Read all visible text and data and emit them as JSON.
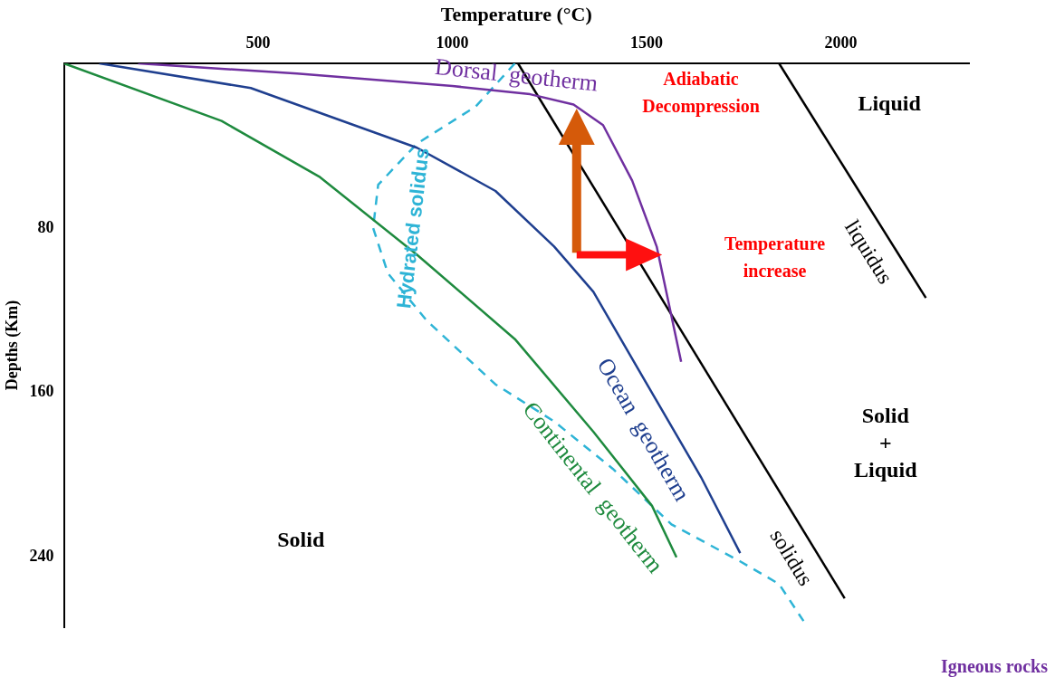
{
  "chart_data": {
    "type": "line",
    "xlabel": "Temperature (°C)",
    "ylabel": "Depths (Km)",
    "xlim": [
      0,
      2330
    ],
    "xticks": [
      500,
      1000,
      1500,
      2000
    ],
    "ylim": [
      274,
      0
    ],
    "yticks": [
      80,
      160,
      240
    ],
    "grid": false,
    "legend": false,
    "marker": "none",
    "series": [
      {
        "name": "Dorsal  geotherm",
        "color": "#7030a0",
        "x": [
          191,
          600,
          1000,
          1200,
          1312,
          1388,
          1463,
          1526,
          1589
        ],
        "values": [
          0,
          5,
          11,
          15,
          20,
          30,
          57,
          89,
          145
        ]
      },
      {
        "name": "Ocean  geotherm",
        "color": "#1f3f8f",
        "x": [
          91,
          481,
          909,
          1111,
          1262,
          1363,
          1489,
          1640,
          1741
        ],
        "values": [
          0,
          12,
          41,
          62,
          89,
          111,
          152,
          201,
          238
        ]
      },
      {
        "name": "Continental  geotherm",
        "color": "#1e8a3e",
        "x": [
          0,
          406,
          657,
          909,
          1161,
          1363,
          1514,
          1577
        ],
        "values": [
          0,
          28,
          55,
          93,
          134,
          179,
          215,
          240
        ]
      },
      {
        "name": "Hydrated solidus",
        "color": "#2eb4d6",
        "line_style": "dashed",
        "x": [
          1161,
          1060,
          909,
          809,
          796,
          834,
          934,
          1111,
          1262,
          1413,
          1564,
          1741,
          1841,
          1904
        ],
        "values": [
          0,
          21,
          39,
          59,
          80,
          102,
          125,
          156,
          174,
          197,
          224,
          242,
          253,
          271
        ]
      },
      {
        "name": "solidus",
        "color": "#000000",
        "x": [
          1169,
          2010
        ],
        "values": [
          0,
          260
        ]
      },
      {
        "name": "liquidus",
        "color": "#000000",
        "x": [
          1841,
          2219
        ],
        "values": [
          0,
          114
        ]
      }
    ],
    "annotations": [
      "Adiabatic Decompression",
      "Temperature increase",
      "Liquid",
      "Solid + Liquid",
      "Solid",
      "Igneous rocks"
    ]
  }
}
